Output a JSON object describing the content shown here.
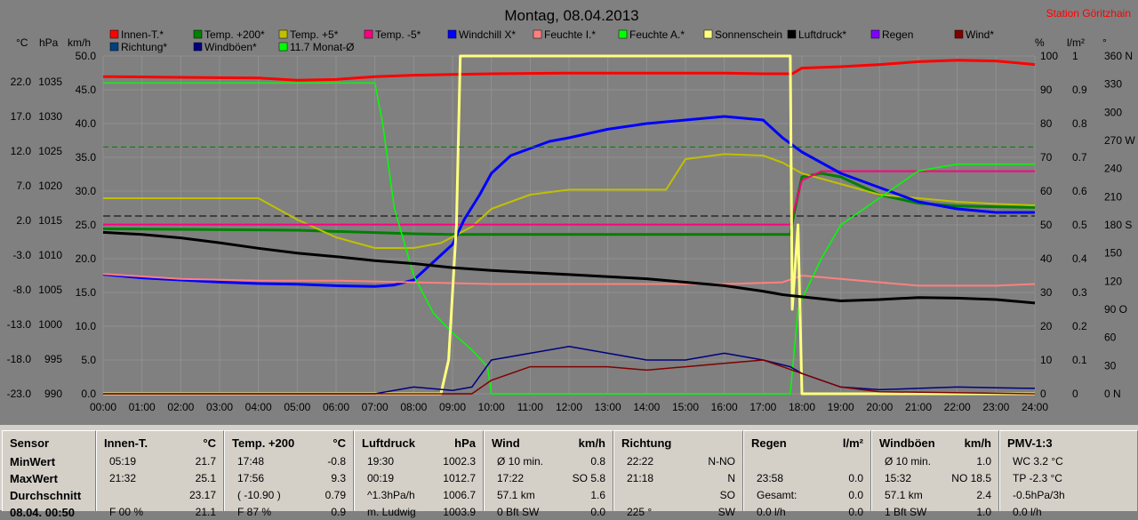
{
  "title": "Montag, 08.04.2013",
  "station": "Station Göritzhain",
  "unit_headers_left": [
    "°C",
    "hPa",
    "km/h"
  ],
  "unit_headers_right": [
    "%",
    "l/m²",
    "°"
  ],
  "legend": [
    {
      "label": "Innen-T.*",
      "color": "#ff0000"
    },
    {
      "label": "Temp. +200*",
      "color": "#008000"
    },
    {
      "label": "Temp. +5*",
      "color": "#c0c000"
    },
    {
      "label": "Temp. -5*",
      "color": "#ff0080"
    },
    {
      "label": "Windchill X*",
      "color": "#0000ff"
    },
    {
      "label": "Feuchte I.*",
      "color": "#ff8080"
    },
    {
      "label": "Feuchte A.*",
      "color": "#00ff00"
    },
    {
      "label": "Sonnenschein",
      "color": "#ffff80"
    },
    {
      "label": "Luftdruck*",
      "color": "#000000"
    },
    {
      "label": "Regen",
      "color": "#8000ff"
    },
    {
      "label": "Wind*",
      "color": "#800000"
    },
    {
      "label": "Richtung*",
      "color": "#004080"
    },
    {
      "label": "Windböen*",
      "color": "#000080"
    },
    {
      "label": "11.7 Monat-Ø",
      "color": "#00ff00"
    }
  ],
  "chart_data": {
    "type": "line",
    "x_ticks": [
      "00:00",
      "01:00",
      "02:00",
      "03:00",
      "04:00",
      "05:00",
      "06:00",
      "07:00",
      "08:00",
      "09:00",
      "10:00",
      "11:00",
      "12:00",
      "13:00",
      "14:00",
      "15:00",
      "16:00",
      "17:00",
      "18:00",
      "19:00",
      "20:00",
      "21:00",
      "22:00",
      "23:00",
      "24:00"
    ],
    "xlim": [
      0,
      24
    ],
    "axes": {
      "temperature_C": {
        "ticks": [
          "22.0",
          "17.0",
          "12.0",
          "7.0",
          "2.0",
          "-3.0",
          "-8.0",
          "-13.0",
          "-18.0",
          "-23.0"
        ],
        "ylim": [
          -23,
          24.5
        ]
      },
      "pressure_hPa": {
        "ticks": [
          "1035",
          "1030",
          "1025",
          "1020",
          "1015",
          "1010",
          "1005",
          "1000",
          "995",
          "990"
        ],
        "ylim": [
          990,
          1038.75
        ]
      },
      "wind_kmh": {
        "ticks": [
          "50.0",
          "45.0",
          "40.0",
          "35.0",
          "30.0",
          "25.0",
          "20.0",
          "15.0",
          "10.0",
          "5.0",
          "0.0"
        ],
        "ylim": [
          0,
          50
        ]
      },
      "humidity_pct": {
        "ticks": [
          "100",
          "90",
          "80",
          "70",
          "60",
          "50",
          "40",
          "30",
          "20",
          "10",
          "0"
        ],
        "ylim": [
          0,
          100
        ]
      },
      "rain_lm2": {
        "ticks": [
          "1",
          "0.9",
          "0.8",
          "0.7",
          "0.6",
          "0.5",
          "0.4",
          "0.3",
          "0.2",
          "0.1",
          "0"
        ],
        "ylim": [
          0,
          1
        ]
      },
      "direction_deg": {
        "ticks": [
          "360 N",
          "330",
          "300",
          "270 W",
          "240",
          "210",
          "180 S",
          "150",
          "120",
          "90 O",
          "60",
          "30",
          "0 N"
        ],
        "ylim": [
          0,
          360
        ]
      }
    },
    "series": [
      {
        "name": "Innen-T.*",
        "axis": "temperature_C",
        "x": [
          0,
          2,
          4,
          5,
          6,
          7,
          8,
          9,
          10,
          12,
          14,
          16,
          17,
          17.75,
          18,
          19,
          20,
          21,
          22,
          23,
          24
        ],
        "y": [
          21.6,
          21.5,
          21.4,
          21.1,
          21.2,
          21.6,
          21.8,
          21.9,
          22.0,
          22.1,
          22.1,
          22.1,
          22.0,
          22.0,
          22.8,
          23.0,
          23.3,
          23.7,
          23.9,
          23.8,
          23.3
        ]
      },
      {
        "name": "Temp. +200*",
        "axis": "temperature_C",
        "x": [
          0,
          5,
          8,
          9,
          10,
          14,
          17,
          17.7,
          17.8,
          18,
          18.5,
          19,
          20,
          21,
          22,
          23,
          24
        ],
        "y": [
          0.2,
          0.0,
          -0.5,
          -0.6,
          -0.6,
          -0.6,
          -0.6,
          -0.6,
          2.5,
          7.5,
          8.0,
          7.5,
          5.0,
          3.8,
          3.4,
          3.3,
          3.2
        ]
      },
      {
        "name": "Temp. +5*",
        "axis": "temperature_C",
        "x": [
          0,
          4,
          5,
          6,
          7,
          8,
          8.7,
          9.5,
          10,
          11,
          12,
          13,
          14,
          14.5,
          15,
          16,
          17,
          17.5,
          18,
          19,
          20,
          21,
          22,
          23,
          24
        ],
        "y": [
          4.5,
          4.5,
          1.5,
          -1.0,
          -2.5,
          -2.5,
          -1.8,
          0.5,
          3.0,
          5.0,
          5.7,
          5.7,
          5.7,
          5.7,
          10.0,
          10.7,
          10.5,
          9.5,
          8.0,
          6.5,
          5.0,
          4.5,
          4.0,
          3.7,
          3.5
        ]
      },
      {
        "name": "Temp. -5*",
        "axis": "temperature_C",
        "x": [
          0,
          17.7,
          17.8,
          18,
          18.5,
          24
        ],
        "y": [
          0.8,
          0.8,
          3.0,
          7.0,
          8.3,
          8.3
        ]
      },
      {
        "name": "Windchill X*",
        "axis": "temperature_C",
        "x": [
          0,
          1,
          2,
          3,
          4,
          5,
          6,
          7,
          7.5,
          8,
          8.5,
          9,
          9.3,
          9.7,
          10,
          10.5,
          11,
          11.5,
          12,
          13,
          14,
          15,
          16,
          17,
          17.5,
          18,
          19,
          20,
          21,
          22,
          23,
          24
        ],
        "y": [
          -6.2,
          -6.7,
          -7.0,
          -7.3,
          -7.5,
          -7.6,
          -7.8,
          -7.9,
          -7.7,
          -7.0,
          -4.5,
          -2.0,
          1.5,
          5.0,
          8.0,
          10.5,
          11.5,
          12.5,
          13.0,
          14.2,
          15.0,
          15.5,
          16.0,
          15.5,
          13.0,
          11.0,
          8.0,
          6.0,
          4.0,
          3.0,
          2.5,
          2.5
        ]
      },
      {
        "name": "Feuchte I.*",
        "axis": "humidity_pct",
        "x": [
          0,
          2,
          4,
          6,
          8,
          10,
          12,
          14,
          16,
          17.5,
          18,
          18.5,
          19,
          20,
          21,
          22,
          23,
          24
        ],
        "y": [
          35.5,
          34,
          33.5,
          33.5,
          33,
          32.5,
          32.5,
          32.5,
          32.5,
          33,
          35,
          34.5,
          34,
          33,
          32,
          32,
          32,
          32.5
        ]
      },
      {
        "name": "Feuchte A.*",
        "axis": "humidity_pct",
        "x": [
          0,
          7,
          7.2,
          7.5,
          8,
          8.5,
          9,
          9.5,
          9.9,
          10,
          17.5,
          17.7,
          17.9,
          18,
          18.5,
          19,
          20,
          20.5,
          21,
          22,
          23,
          24
        ],
        "y": [
          92,
          92,
          80,
          55,
          35,
          24,
          18,
          13,
          8,
          0,
          0,
          0,
          25,
          28,
          40,
          50,
          58,
          62,
          66,
          68,
          68,
          68
        ]
      },
      {
        "name": "Sonnenschein",
        "axis": "humidity_pct",
        "x": [
          0,
          8.7,
          8.9,
          9.1,
          9.2,
          17.7,
          17.75,
          17.9,
          18.0,
          18.1,
          24
        ],
        "y": [
          0,
          0,
          10,
          50,
          100,
          100,
          25,
          50,
          0,
          0,
          0
        ]
      },
      {
        "name": "Luftdruck*",
        "axis": "pressure_hPa",
        "x": [
          0,
          1,
          2,
          3,
          4,
          5,
          6,
          7,
          8,
          9,
          10,
          11,
          12,
          13,
          14,
          15,
          16,
          17,
          17.5,
          18,
          19,
          20,
          21,
          22,
          23,
          24
        ],
        "y": [
          1013.3,
          1013.0,
          1012.5,
          1011.8,
          1011.0,
          1010.3,
          1009.8,
          1009.2,
          1008.8,
          1008.2,
          1007.8,
          1007.5,
          1007.2,
          1006.9,
          1006.6,
          1006.1,
          1005.6,
          1004.8,
          1004.3,
          1004.0,
          1003.4,
          1003.6,
          1003.9,
          1003.8,
          1003.6,
          1003.1
        ]
      },
      {
        "name": "Windböen*",
        "axis": "wind_kmh",
        "x": [
          0,
          7,
          8,
          9,
          9.5,
          10,
          11,
          12,
          13,
          14,
          15,
          16,
          17,
          17.7,
          18,
          18.5,
          19,
          20,
          21,
          22,
          23,
          24
        ],
        "y": [
          0,
          0,
          1,
          0.5,
          1,
          5,
          6,
          7,
          6,
          5,
          5,
          6,
          5,
          4,
          3,
          2,
          1,
          0.6,
          0.8,
          1,
          0.9,
          0.8
        ]
      },
      {
        "name": "Wind*",
        "axis": "wind_kmh",
        "x": [
          0,
          9.5,
          10,
          10.5,
          11,
          12,
          13,
          14,
          15,
          16,
          17,
          17.5,
          18,
          18.5,
          19,
          20,
          24
        ],
        "y": [
          0,
          0,
          2,
          3,
          4,
          4,
          4,
          3.5,
          4,
          4.5,
          5,
          4,
          3,
          2,
          1,
          0.3,
          0
        ]
      },
      {
        "name": "11.7 Monat-Ø",
        "axis": "temperature_C",
        "x": [
          0,
          24
        ],
        "y": [
          11.7,
          11.7
        ]
      }
    ],
    "hlines": [
      {
        "axis": "temperature_C",
        "y": 2.0,
        "style": "dashed",
        "color": "#000000"
      }
    ],
    "grid": true
  },
  "stats": {
    "row_labels": [
      "Sensor",
      "MinWert",
      "MaxWert",
      "Durchschnitt",
      "08.04. 00:50"
    ],
    "panels": [
      {
        "title": "Innen-T.",
        "unit": "°C",
        "rows": [
          [
            "05:19",
            "21.7"
          ],
          [
            "21:32",
            "25.1"
          ],
          [
            "",
            "23.17"
          ],
          [
            "F 00 %",
            "21.1"
          ]
        ]
      },
      {
        "title": "Temp. +200",
        "unit": "°C",
        "rows": [
          [
            "17:48",
            "-0.8"
          ],
          [
            "17:56",
            "9.3"
          ],
          [
            "( -10.90 )",
            "0.79"
          ],
          [
            "F 87 %",
            "0.9"
          ]
        ]
      },
      {
        "title": "Luftdruck",
        "unit": "hPa",
        "rows": [
          [
            "19:30",
            "1002.3"
          ],
          [
            "00:19",
            "1012.7"
          ],
          [
            "^1.3hPa/h",
            "1006.7"
          ],
          [
            "m. Ludwig",
            "1003.9"
          ]
        ]
      },
      {
        "title": "Wind",
        "unit": "km/h",
        "rows": [
          [
            "Ø 10 min.",
            "0.8"
          ],
          [
            "17:22",
            "SO 5.8"
          ],
          [
            "57.1 km",
            "1.6"
          ],
          [
            "0 Bft SW",
            "0.0"
          ]
        ]
      },
      {
        "title": "Richtung",
        "unit": "",
        "rows": [
          [
            "22:22",
            "N-NO"
          ],
          [
            "21:18",
            "N"
          ],
          [
            "",
            "SO"
          ],
          [
            "225 °",
            "SW"
          ]
        ]
      },
      {
        "title": "Regen",
        "unit": "l/m²",
        "rows": [
          [
            "",
            ""
          ],
          [
            "23:58",
            "0.0"
          ],
          [
            "Gesamt:",
            "0.0"
          ],
          [
            "0.0 l/h",
            "0.0"
          ]
        ]
      },
      {
        "title": "Windböen",
        "unit": "km/h",
        "rows": [
          [
            "Ø 10 min.",
            "1.0"
          ],
          [
            "15:32",
            "NO 18.5"
          ],
          [
            "57.1 km",
            "2.4"
          ],
          [
            "1 Bft SW",
            "1.0"
          ]
        ]
      },
      {
        "title": "PMV-1:3",
        "unit": "",
        "rows": [
          [
            "WC 3.2 °C",
            ""
          ],
          [
            "TP -2.3 °C",
            ""
          ],
          [
            "-0.5hPa/3h",
            ""
          ],
          [
            "0.0 l/h",
            ""
          ]
        ]
      }
    ]
  }
}
